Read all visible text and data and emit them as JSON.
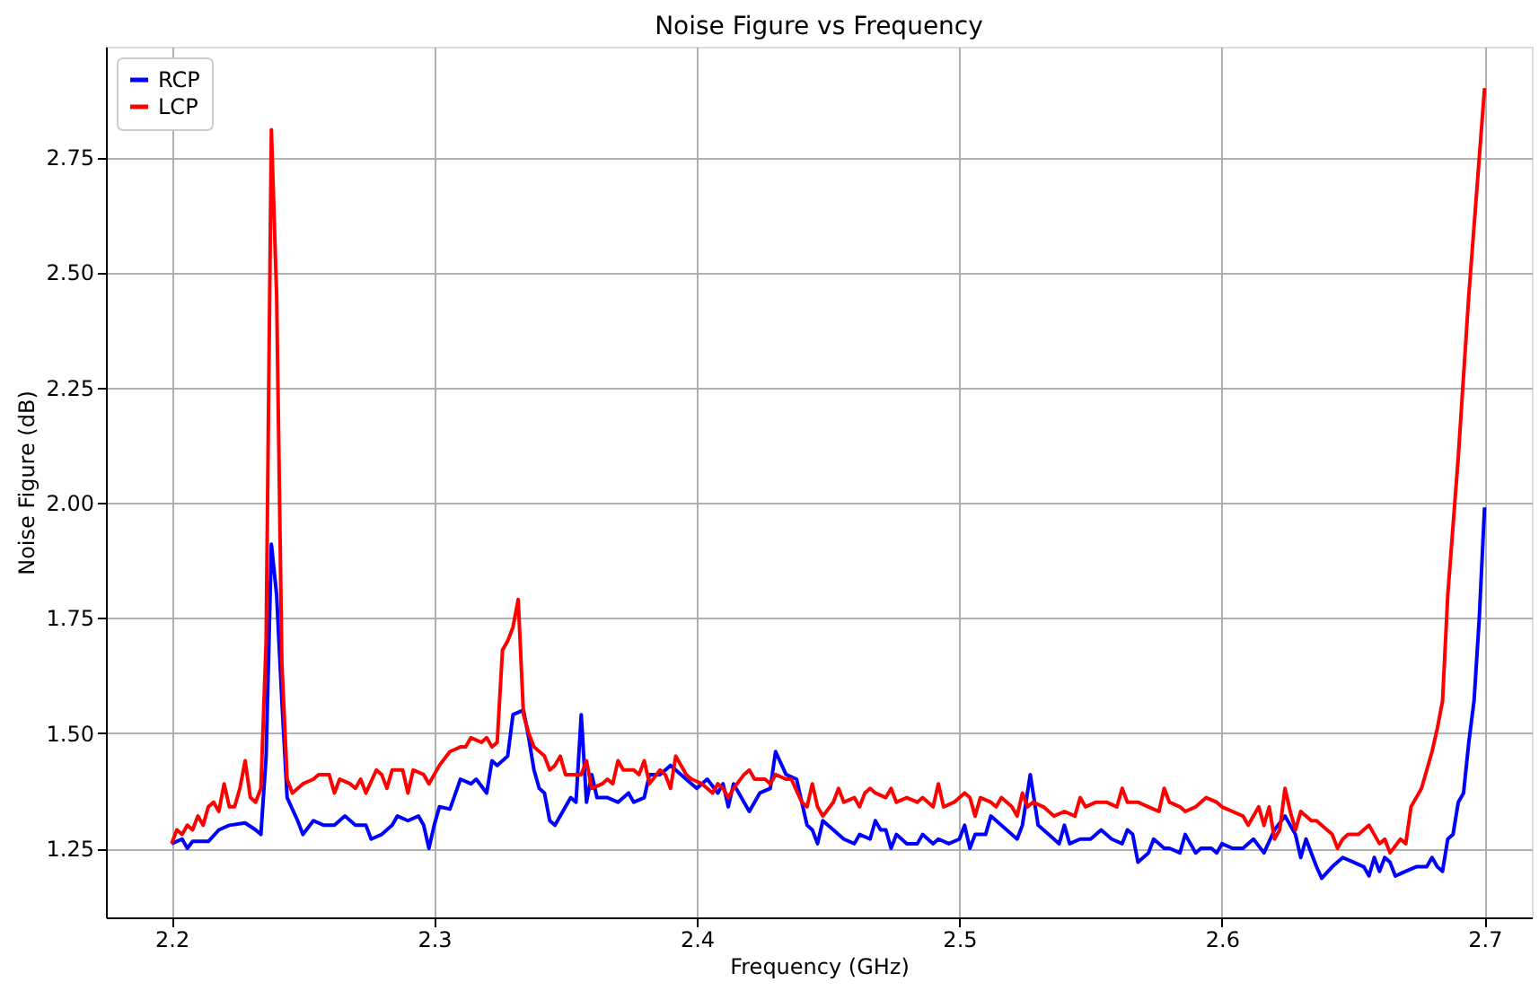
{
  "chart_data": {
    "type": "line",
    "title": "Noise Figure vs Frequency",
    "xlabel": "Frequency (GHz)",
    "ylabel": "Noise Figure (dB)",
    "xlim": [
      2.175,
      2.718
    ],
    "ylim": [
      1.1,
      2.99
    ],
    "xticks": [
      2.2,
      2.3,
      2.4,
      2.5,
      2.6,
      2.7
    ],
    "yticks": [
      1.25,
      {
        "value": 1.5,
        "label": "1.50"
      },
      1.75,
      {
        "value": 2.0,
        "label": "2.00"
      },
      2.25,
      {
        "value": 2.5,
        "label": "2.50"
      },
      2.75
    ],
    "grid": true,
    "legend": "top left",
    "line_style": "solid",
    "marker": "none",
    "series": [
      {
        "name": "RCP",
        "color": "#0000ff",
        "x": [
          2.2,
          2.204,
          2.206,
          2.208,
          2.214,
          2.218,
          2.222,
          2.228,
          2.232,
          2.234,
          2.236,
          2.238,
          2.24,
          2.242,
          2.244,
          2.248,
          2.25,
          2.254,
          2.258,
          2.262,
          2.266,
          2.27,
          2.274,
          2.276,
          2.28,
          2.284,
          2.286,
          2.29,
          2.294,
          2.296,
          2.298,
          2.3,
          2.302,
          2.306,
          2.31,
          2.314,
          2.316,
          2.32,
          2.322,
          2.324,
          2.328,
          2.33,
          2.334,
          2.336,
          2.338,
          2.34,
          2.342,
          2.344,
          2.346,
          2.35,
          2.352,
          2.354,
          2.356,
          2.358,
          2.36,
          2.362,
          2.366,
          2.37,
          2.374,
          2.376,
          2.38,
          2.382,
          2.386,
          2.39,
          2.394,
          2.398,
          2.4,
          2.404,
          2.408,
          2.41,
          2.412,
          2.414,
          2.418,
          2.42,
          2.424,
          2.428,
          2.43,
          2.434,
          2.438,
          2.442,
          2.444,
          2.446,
          2.448,
          2.452,
          2.456,
          2.46,
          2.462,
          2.466,
          2.468,
          2.47,
          2.472,
          2.474,
          2.476,
          2.48,
          2.484,
          2.486,
          2.49,
          2.492,
          2.496,
          2.5,
          2.502,
          2.504,
          2.506,
          2.51,
          2.512,
          2.518,
          2.522,
          2.524,
          2.527,
          2.53,
          2.534,
          2.538,
          2.54,
          2.542,
          2.546,
          2.55,
          2.554,
          2.558,
          2.562,
          2.564,
          2.566,
          2.568,
          2.572,
          2.574,
          2.578,
          2.58,
          2.584,
          2.586,
          2.59,
          2.592,
          2.596,
          2.598,
          2.6,
          2.604,
          2.608,
          2.612,
          2.616,
          2.62,
          2.624,
          2.628,
          2.63,
          2.632,
          2.636,
          2.638,
          2.642,
          2.646,
          2.65,
          2.654,
          2.656,
          2.658,
          2.66,
          2.662,
          2.664,
          2.666,
          2.67,
          2.674,
          2.678,
          2.68,
          2.682,
          2.684,
          2.686,
          2.688,
          2.69,
          2.692,
          2.694,
          2.696,
          2.698,
          2.7
        ],
        "values": [
          1.26,
          1.27,
          1.25,
          1.265,
          1.265,
          1.29,
          1.3,
          1.305,
          1.29,
          1.28,
          1.45,
          1.91,
          1.8,
          1.57,
          1.36,
          1.31,
          1.28,
          1.31,
          1.3,
          1.3,
          1.32,
          1.3,
          1.3,
          1.27,
          1.28,
          1.3,
          1.32,
          1.31,
          1.32,
          1.3,
          1.25,
          1.3,
          1.34,
          1.335,
          1.4,
          1.39,
          1.4,
          1.37,
          1.44,
          1.43,
          1.45,
          1.54,
          1.55,
          1.49,
          1.42,
          1.38,
          1.37,
          1.31,
          1.3,
          1.34,
          1.36,
          1.35,
          1.54,
          1.35,
          1.41,
          1.36,
          1.36,
          1.35,
          1.37,
          1.35,
          1.36,
          1.41,
          1.41,
          1.43,
          1.41,
          1.39,
          1.38,
          1.4,
          1.37,
          1.39,
          1.34,
          1.39,
          1.35,
          1.33,
          1.37,
          1.38,
          1.46,
          1.41,
          1.4,
          1.3,
          1.29,
          1.26,
          1.31,
          1.29,
          1.27,
          1.26,
          1.28,
          1.27,
          1.31,
          1.29,
          1.29,
          1.25,
          1.28,
          1.26,
          1.26,
          1.28,
          1.26,
          1.27,
          1.26,
          1.27,
          1.3,
          1.25,
          1.28,
          1.28,
          1.32,
          1.29,
          1.27,
          1.3,
          1.41,
          1.3,
          1.28,
          1.26,
          1.3,
          1.26,
          1.27,
          1.27,
          1.29,
          1.27,
          1.26,
          1.29,
          1.28,
          1.22,
          1.24,
          1.27,
          1.25,
          1.25,
          1.24,
          1.28,
          1.24,
          1.25,
          1.25,
          1.24,
          1.26,
          1.25,
          1.25,
          1.27,
          1.24,
          1.29,
          1.32,
          1.28,
          1.23,
          1.27,
          1.21,
          1.185,
          1.21,
          1.23,
          1.22,
          1.21,
          1.19,
          1.23,
          1.2,
          1.23,
          1.22,
          1.19,
          1.2,
          1.21,
          1.21,
          1.23,
          1.21,
          1.2,
          1.27,
          1.28,
          1.35,
          1.37,
          1.48,
          1.57,
          1.75,
          1.99
        ]
      },
      {
        "name": "LCP",
        "color": "#ff0000",
        "x": [
          2.2,
          2.202,
          2.204,
          2.206,
          2.208,
          2.21,
          2.212,
          2.214,
          2.216,
          2.218,
          2.22,
          2.222,
          2.224,
          2.226,
          2.228,
          2.23,
          2.232,
          2.234,
          2.236,
          2.238,
          2.24,
          2.242,
          2.244,
          2.246,
          2.25,
          2.254,
          2.256,
          2.26,
          2.262,
          2.264,
          2.268,
          2.27,
          2.272,
          2.274,
          2.278,
          2.28,
          2.282,
          2.284,
          2.288,
          2.29,
          2.292,
          2.296,
          2.298,
          2.302,
          2.306,
          2.31,
          2.312,
          2.314,
          2.318,
          2.32,
          2.322,
          2.324,
          2.326,
          2.328,
          2.33,
          2.332,
          2.334,
          2.336,
          2.338,
          2.342,
          2.344,
          2.346,
          2.348,
          2.35,
          2.354,
          2.356,
          2.358,
          2.36,
          2.364,
          2.366,
          2.368,
          2.37,
          2.372,
          2.376,
          2.378,
          2.38,
          2.382,
          2.386,
          2.388,
          2.39,
          2.392,
          2.396,
          2.398,
          2.402,
          2.406,
          2.408,
          2.41,
          2.412,
          2.414,
          2.418,
          2.42,
          2.422,
          2.426,
          2.428,
          2.43,
          2.434,
          2.436,
          2.44,
          2.442,
          2.444,
          2.446,
          2.448,
          2.452,
          2.454,
          2.456,
          2.46,
          2.462,
          2.464,
          2.466,
          2.468,
          2.472,
          2.474,
          2.476,
          2.48,
          2.484,
          2.486,
          2.49,
          2.492,
          2.494,
          2.498,
          2.502,
          2.504,
          2.506,
          2.508,
          2.512,
          2.514,
          2.516,
          2.52,
          2.522,
          2.524,
          2.526,
          2.528,
          2.532,
          2.536,
          2.54,
          2.544,
          2.546,
          2.548,
          2.552,
          2.556,
          2.56,
          2.562,
          2.564,
          2.568,
          2.572,
          2.576,
          2.578,
          2.58,
          2.584,
          2.586,
          2.59,
          2.594,
          2.598,
          2.6,
          2.604,
          2.608,
          2.61,
          2.614,
          2.616,
          2.618,
          2.62,
          2.622,
          2.624,
          2.626,
          2.628,
          2.63,
          2.634,
          2.636,
          2.64,
          2.642,
          2.644,
          2.646,
          2.648,
          2.652,
          2.656,
          2.658,
          2.66,
          2.662,
          2.664,
          2.668,
          2.67,
          2.672,
          2.674,
          2.676,
          2.68,
          2.682,
          2.684,
          2.686,
          2.69,
          2.694,
          2.7
        ],
        "values": [
          1.26,
          1.29,
          1.28,
          1.3,
          1.29,
          1.32,
          1.3,
          1.34,
          1.35,
          1.33,
          1.39,
          1.34,
          1.34,
          1.38,
          1.44,
          1.36,
          1.35,
          1.38,
          1.7,
          2.81,
          2.45,
          1.65,
          1.4,
          1.37,
          1.39,
          1.4,
          1.41,
          1.41,
          1.37,
          1.4,
          1.39,
          1.38,
          1.4,
          1.37,
          1.42,
          1.41,
          1.38,
          1.42,
          1.42,
          1.37,
          1.42,
          1.41,
          1.39,
          1.43,
          1.46,
          1.47,
          1.47,
          1.49,
          1.48,
          1.49,
          1.47,
          1.48,
          1.68,
          1.7,
          1.73,
          1.79,
          1.54,
          1.5,
          1.47,
          1.45,
          1.42,
          1.43,
          1.45,
          1.41,
          1.41,
          1.41,
          1.44,
          1.38,
          1.39,
          1.4,
          1.39,
          1.44,
          1.42,
          1.42,
          1.41,
          1.44,
          1.39,
          1.42,
          1.41,
          1.38,
          1.45,
          1.41,
          1.4,
          1.39,
          1.37,
          1.39,
          1.38,
          1.36,
          1.38,
          1.41,
          1.42,
          1.4,
          1.4,
          1.39,
          1.41,
          1.4,
          1.4,
          1.35,
          1.34,
          1.39,
          1.34,
          1.32,
          1.35,
          1.38,
          1.35,
          1.36,
          1.34,
          1.37,
          1.38,
          1.37,
          1.36,
          1.38,
          1.35,
          1.36,
          1.35,
          1.36,
          1.34,
          1.39,
          1.34,
          1.35,
          1.37,
          1.36,
          1.32,
          1.36,
          1.35,
          1.34,
          1.36,
          1.34,
          1.32,
          1.37,
          1.34,
          1.35,
          1.34,
          1.32,
          1.33,
          1.32,
          1.36,
          1.34,
          1.35,
          1.35,
          1.34,
          1.38,
          1.35,
          1.35,
          1.34,
          1.33,
          1.38,
          1.35,
          1.34,
          1.33,
          1.34,
          1.36,
          1.35,
          1.34,
          1.33,
          1.32,
          1.3,
          1.34,
          1.3,
          1.34,
          1.27,
          1.29,
          1.38,
          1.33,
          1.29,
          1.33,
          1.31,
          1.31,
          1.29,
          1.28,
          1.25,
          1.27,
          1.28,
          1.28,
          1.3,
          1.28,
          1.26,
          1.27,
          1.24,
          1.27,
          1.26,
          1.34,
          1.36,
          1.38,
          1.46,
          1.51,
          1.57,
          1.8,
          2.1,
          2.45,
          2.9
        ]
      }
    ]
  }
}
